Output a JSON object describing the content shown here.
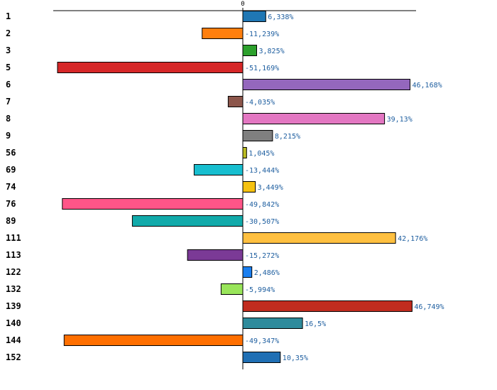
{
  "chart_data": {
    "type": "bar",
    "orientation": "horizontal",
    "title": "",
    "xlabel": "",
    "ylabel": "",
    "xlim": [
      -52.5,
      52.5
    ],
    "zero_tick_label": "0",
    "grid": false,
    "value_label_color": "#1f5fa0",
    "categories": [
      "1",
      "2",
      "3",
      "5",
      "6",
      "7",
      "8",
      "9",
      "56",
      "69",
      "74",
      "76",
      "89",
      "111",
      "113",
      "122",
      "132",
      "139",
      "140",
      "144",
      "152"
    ],
    "values": [
      6.338,
      -11.239,
      3.825,
      -51.169,
      46.168,
      -4.035,
      39.13,
      8.215,
      1.045,
      -13.444,
      3.449,
      -49.842,
      -30.507,
      42.176,
      -15.272,
      2.486,
      -5.994,
      46.749,
      16.5,
      -49.347,
      10.35
    ],
    "value_labels": [
      "6,338%",
      "-11,239%",
      "3,825%",
      "-51,169%",
      "46,168%",
      "-4,035%",
      "39,13%",
      "8,215%",
      "1,045%",
      "-13,444%",
      "3,449%",
      "-49,842%",
      "-30,507%",
      "42,176%",
      "-15,272%",
      "2,486%",
      "-5,994%",
      "46,749%",
      "16,5%",
      "-49,347%",
      "10,35%"
    ],
    "colors": [
      "#1f77b4",
      "#ff7f0e",
      "#2ca02c",
      "#d62728",
      "#9467bd",
      "#8c564b",
      "#e377c2",
      "#7f7f7f",
      "#bcbd22",
      "#17becf",
      "#f5c211",
      "#ff5588",
      "#11aaaa",
      "#ffc040",
      "#7b3a96",
      "#1a7ff0",
      "#99e55a",
      "#c12c1f",
      "#2e8b9c",
      "#ff6f00",
      "#1f6fb4"
    ]
  }
}
